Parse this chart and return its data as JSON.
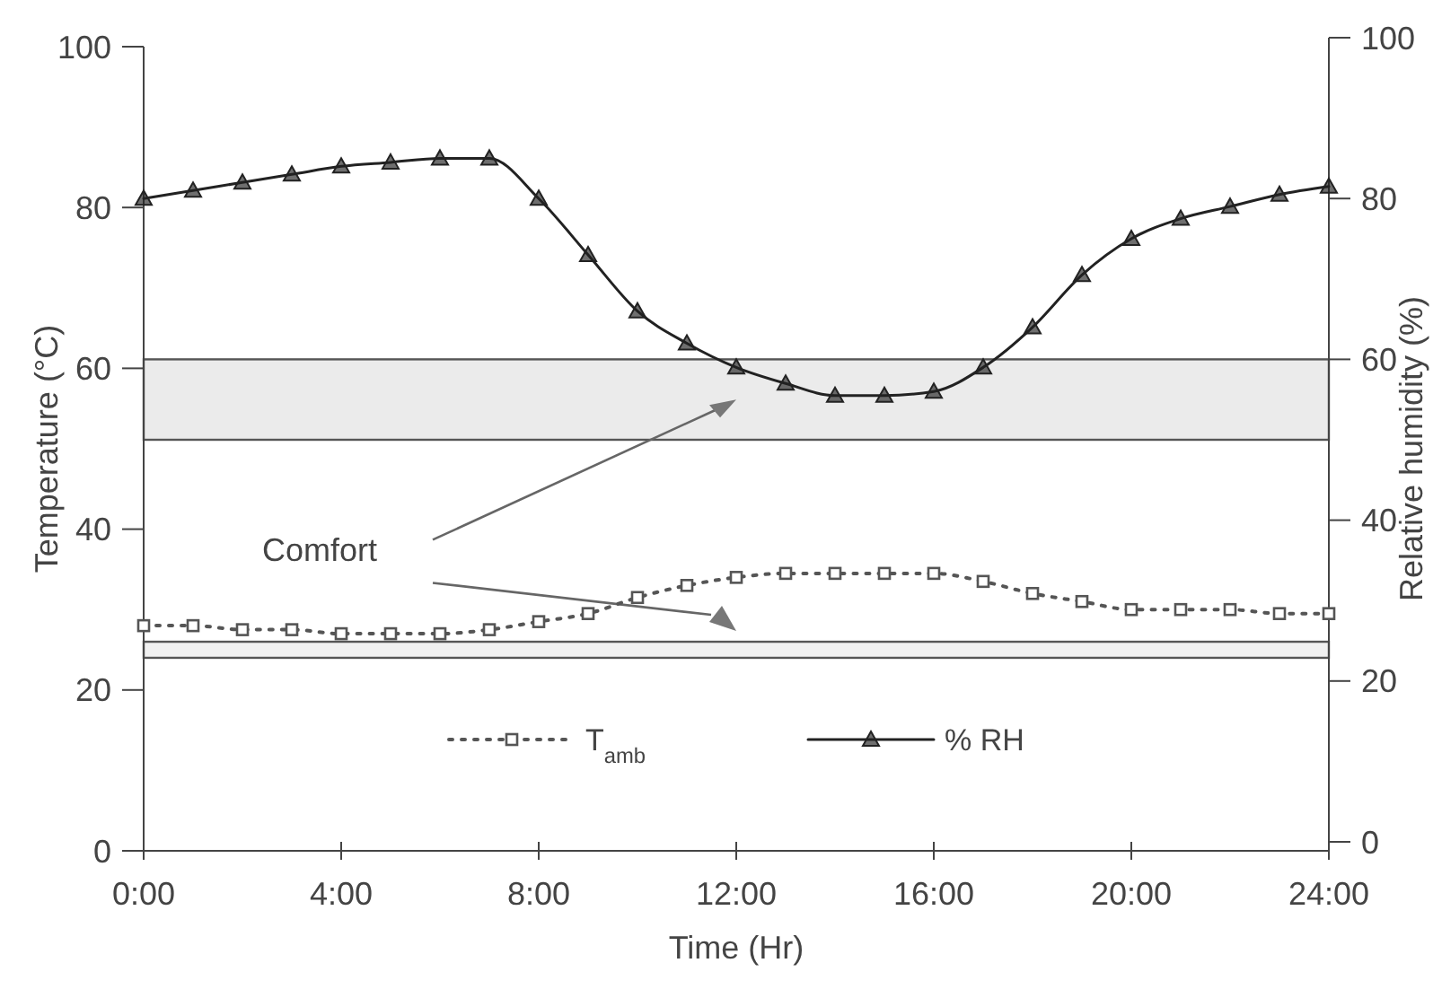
{
  "chart_data": {
    "type": "line",
    "xlabel": "Time (Hr)",
    "ylabel": "Temperature (°C)",
    "y2label": "Relative humidity (%)",
    "x": [
      0,
      1,
      2,
      3,
      4,
      5,
      6,
      7,
      8,
      9,
      10,
      11,
      12,
      13,
      14,
      15,
      16,
      17,
      18,
      19,
      20,
      21,
      22,
      23,
      24
    ],
    "xlim": [
      0,
      24
    ],
    "xticks": [
      {
        "value": 0,
        "label": "0:00"
      },
      {
        "value": 4,
        "label": "4:00"
      },
      {
        "value": 8,
        "label": "8:00"
      },
      {
        "value": 12,
        "label": "12:00"
      },
      {
        "value": 16,
        "label": "16:00"
      },
      {
        "value": 20,
        "label": "20:00"
      },
      {
        "value": 24,
        "label": "24:00"
      }
    ],
    "ylim": [
      0,
      100
    ],
    "yticks": [
      0,
      20,
      40,
      60,
      80,
      100
    ],
    "y2lim": [
      0,
      100
    ],
    "y2ticks": [
      0,
      20,
      40,
      60,
      80,
      100
    ],
    "series": [
      {
        "name": "T$_{amb}$",
        "color": "#555555",
        "marker": "square",
        "line_style": "dotted",
        "values": [
          28,
          28,
          27.5,
          27.5,
          27,
          27,
          27,
          27.5,
          28.5,
          29.5,
          31.5,
          33,
          34,
          34.5,
          34.5,
          34.5,
          34.5,
          33.5,
          32,
          31,
          30,
          30,
          30,
          29.5,
          29.5
        ]
      },
      {
        "name": "% RH",
        "color": "#222222",
        "marker": "triangle",
        "line_style": "solid",
        "axis": "y2",
        "values": [
          80,
          81,
          82,
          83,
          84,
          84.5,
          85,
          85,
          80,
          73,
          66,
          62,
          59,
          57,
          55.5,
          55.5,
          56,
          59,
          64,
          70.5,
          75,
          77.5,
          79,
          80.5,
          81.5
        ]
      }
    ],
    "bands": [
      {
        "axis": "y2",
        "from": 50,
        "to": 60,
        "color": "#ebebeb"
      },
      {
        "axis": "y",
        "from": 24,
        "to": 26,
        "color": "#f0f0f0"
      }
    ],
    "annotations": [
      "Comfort"
    ],
    "legend": "bottom",
    "grid": false
  }
}
